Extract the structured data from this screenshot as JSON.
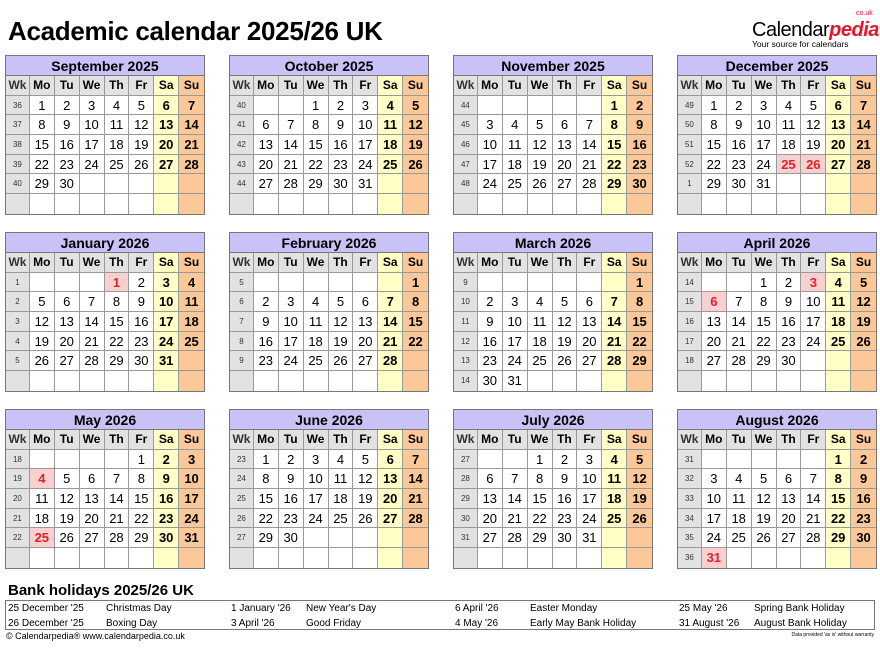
{
  "title": "Academic calendar 2025/26 UK",
  "logo": {
    "brand_a": "Calendar",
    "brand_b": "pedia",
    "couk": "co.uk",
    "tagline": "Your source for calendars"
  },
  "weekday_headers": [
    "Wk",
    "Mo",
    "Tu",
    "We",
    "Th",
    "Fr",
    "Sa",
    "Su"
  ],
  "colors": {
    "month_header": "#c8c2f7",
    "saturday": "#ffffc6",
    "sunday": "#fdc898",
    "holiday_bg": "#f8d0d0",
    "holiday_text": "#e0202a",
    "week_col": "#e2e2e2"
  },
  "months": [
    {
      "name": "September 2025",
      "holidays": [],
      "weeks": [
        [
          "36",
          "1",
          "2",
          "3",
          "4",
          "5",
          "6",
          "7"
        ],
        [
          "37",
          "8",
          "9",
          "10",
          "11",
          "12",
          "13",
          "14"
        ],
        [
          "38",
          "15",
          "16",
          "17",
          "18",
          "19",
          "20",
          "21"
        ],
        [
          "39",
          "22",
          "23",
          "24",
          "25",
          "26",
          "27",
          "28"
        ],
        [
          "40",
          "29",
          "30",
          "",
          "",
          "",
          "",
          ""
        ],
        [
          "",
          "",
          "",
          "",
          "",
          "",
          "",
          ""
        ]
      ]
    },
    {
      "name": "October 2025",
      "holidays": [],
      "weeks": [
        [
          "40",
          "",
          "",
          "1",
          "2",
          "3",
          "4",
          "5"
        ],
        [
          "41",
          "6",
          "7",
          "8",
          "9",
          "10",
          "11",
          "12"
        ],
        [
          "42",
          "13",
          "14",
          "15",
          "16",
          "17",
          "18",
          "19"
        ],
        [
          "43",
          "20",
          "21",
          "22",
          "23",
          "24",
          "25",
          "26"
        ],
        [
          "44",
          "27",
          "28",
          "29",
          "30",
          "31",
          "",
          ""
        ],
        [
          "",
          "",
          "",
          "",
          "",
          "",
          "",
          ""
        ]
      ]
    },
    {
      "name": "November 2025",
      "holidays": [],
      "weeks": [
        [
          "44",
          "",
          "",
          "",
          "",
          "",
          "1",
          "2"
        ],
        [
          "45",
          "3",
          "4",
          "5",
          "6",
          "7",
          "8",
          "9"
        ],
        [
          "46",
          "10",
          "11",
          "12",
          "13",
          "14",
          "15",
          "16"
        ],
        [
          "47",
          "17",
          "18",
          "19",
          "20",
          "21",
          "22",
          "23"
        ],
        [
          "48",
          "24",
          "25",
          "26",
          "27",
          "28",
          "29",
          "30"
        ],
        [
          "",
          "",
          "",
          "",
          "",
          "",
          "",
          ""
        ]
      ]
    },
    {
      "name": "December 2025",
      "holidays": [
        "25",
        "26"
      ],
      "weeks": [
        [
          "49",
          "1",
          "2",
          "3",
          "4",
          "5",
          "6",
          "7"
        ],
        [
          "50",
          "8",
          "9",
          "10",
          "11",
          "12",
          "13",
          "14"
        ],
        [
          "51",
          "15",
          "16",
          "17",
          "18",
          "19",
          "20",
          "21"
        ],
        [
          "52",
          "22",
          "23",
          "24",
          "25",
          "26",
          "27",
          "28"
        ],
        [
          "1",
          "29",
          "30",
          "31",
          "",
          "",
          "",
          ""
        ],
        [
          "",
          "",
          "",
          "",
          "",
          "",
          "",
          ""
        ]
      ]
    },
    {
      "name": "January 2026",
      "holidays": [
        "1"
      ],
      "weeks": [
        [
          "1",
          "",
          "",
          "",
          "1",
          "2",
          "3",
          "4"
        ],
        [
          "2",
          "5",
          "6",
          "7",
          "8",
          "9",
          "10",
          "11"
        ],
        [
          "3",
          "12",
          "13",
          "14",
          "15",
          "16",
          "17",
          "18"
        ],
        [
          "4",
          "19",
          "20",
          "21",
          "22",
          "23",
          "24",
          "25"
        ],
        [
          "5",
          "26",
          "27",
          "28",
          "29",
          "30",
          "31",
          ""
        ],
        [
          "",
          "",
          "",
          "",
          "",
          "",
          "",
          ""
        ]
      ]
    },
    {
      "name": "February 2026",
      "holidays": [],
      "weeks": [
        [
          "5",
          "",
          "",
          "",
          "",
          "",
          "",
          "1"
        ],
        [
          "6",
          "2",
          "3",
          "4",
          "5",
          "6",
          "7",
          "8"
        ],
        [
          "7",
          "9",
          "10",
          "11",
          "12",
          "13",
          "14",
          "15"
        ],
        [
          "8",
          "16",
          "17",
          "18",
          "19",
          "20",
          "21",
          "22"
        ],
        [
          "9",
          "23",
          "24",
          "25",
          "26",
          "27",
          "28",
          ""
        ],
        [
          "",
          "",
          "",
          "",
          "",
          "",
          "",
          ""
        ]
      ]
    },
    {
      "name": "March 2026",
      "holidays": [],
      "weeks": [
        [
          "9",
          "",
          "",
          "",
          "",
          "",
          "",
          "1"
        ],
        [
          "10",
          "2",
          "3",
          "4",
          "5",
          "6",
          "7",
          "8"
        ],
        [
          "11",
          "9",
          "10",
          "11",
          "12",
          "13",
          "14",
          "15"
        ],
        [
          "12",
          "16",
          "17",
          "18",
          "19",
          "20",
          "21",
          "22"
        ],
        [
          "13",
          "23",
          "24",
          "25",
          "26",
          "27",
          "28",
          "29"
        ],
        [
          "14",
          "30",
          "31",
          "",
          "",
          "",
          "",
          ""
        ]
      ]
    },
    {
      "name": "April 2026",
      "holidays": [
        "3",
        "6"
      ],
      "weeks": [
        [
          "14",
          "",
          "",
          "1",
          "2",
          "3",
          "4",
          "5"
        ],
        [
          "15",
          "6",
          "7",
          "8",
          "9",
          "10",
          "11",
          "12"
        ],
        [
          "16",
          "13",
          "14",
          "15",
          "16",
          "17",
          "18",
          "19"
        ],
        [
          "17",
          "20",
          "21",
          "22",
          "23",
          "24",
          "25",
          "26"
        ],
        [
          "18",
          "27",
          "28",
          "29",
          "30",
          "",
          "",
          ""
        ],
        [
          "",
          "",
          "",
          "",
          "",
          "",
          "",
          ""
        ]
      ]
    },
    {
      "name": "May 2026",
      "holidays": [
        "4",
        "25"
      ],
      "weeks": [
        [
          "18",
          "",
          "",
          "",
          "",
          "1",
          "2",
          "3"
        ],
        [
          "19",
          "4",
          "5",
          "6",
          "7",
          "8",
          "9",
          "10"
        ],
        [
          "20",
          "11",
          "12",
          "13",
          "14",
          "15",
          "16",
          "17"
        ],
        [
          "21",
          "18",
          "19",
          "20",
          "21",
          "22",
          "23",
          "24"
        ],
        [
          "22",
          "25",
          "26",
          "27",
          "28",
          "29",
          "30",
          "31"
        ],
        [
          "",
          "",
          "",
          "",
          "",
          "",
          "",
          ""
        ]
      ]
    },
    {
      "name": "June 2026",
      "holidays": [],
      "weeks": [
        [
          "23",
          "1",
          "2",
          "3",
          "4",
          "5",
          "6",
          "7"
        ],
        [
          "24",
          "8",
          "9",
          "10",
          "11",
          "12",
          "13",
          "14"
        ],
        [
          "25",
          "15",
          "16",
          "17",
          "18",
          "19",
          "20",
          "21"
        ],
        [
          "26",
          "22",
          "23",
          "24",
          "25",
          "26",
          "27",
          "28"
        ],
        [
          "27",
          "29",
          "30",
          "",
          "",
          "",
          "",
          ""
        ],
        [
          "",
          "",
          "",
          "",
          "",
          "",
          "",
          ""
        ]
      ]
    },
    {
      "name": "July 2026",
      "holidays": [],
      "weeks": [
        [
          "27",
          "",
          "",
          "1",
          "2",
          "3",
          "4",
          "5"
        ],
        [
          "28",
          "6",
          "7",
          "8",
          "9",
          "10",
          "11",
          "12"
        ],
        [
          "29",
          "13",
          "14",
          "15",
          "16",
          "17",
          "18",
          "19"
        ],
        [
          "30",
          "20",
          "21",
          "22",
          "23",
          "24",
          "25",
          "26"
        ],
        [
          "31",
          "27",
          "28",
          "29",
          "30",
          "31",
          "",
          ""
        ],
        [
          "",
          "",
          "",
          "",
          "",
          "",
          "",
          ""
        ]
      ]
    },
    {
      "name": "August 2026",
      "holidays": [
        "31"
      ],
      "weeks": [
        [
          "31",
          "",
          "",
          "",
          "",
          "",
          "1",
          "2"
        ],
        [
          "32",
          "3",
          "4",
          "5",
          "6",
          "7",
          "8",
          "9"
        ],
        [
          "33",
          "10",
          "11",
          "12",
          "13",
          "14",
          "15",
          "16"
        ],
        [
          "34",
          "17",
          "18",
          "19",
          "20",
          "21",
          "22",
          "23"
        ],
        [
          "35",
          "24",
          "25",
          "26",
          "27",
          "28",
          "29",
          "30"
        ],
        [
          "36",
          "31",
          "",
          "",
          "",
          "",
          "",
          ""
        ]
      ]
    }
  ],
  "bank_holidays": {
    "title": "Bank holidays 2025/26 UK",
    "items": [
      {
        "date": "25 December '25",
        "name": "Christmas Day"
      },
      {
        "date": "26 December '25",
        "name": "Boxing Day"
      },
      {
        "date": "1 January '26",
        "name": "New Year's Day"
      },
      {
        "date": "3 April '26",
        "name": "Good Friday"
      },
      {
        "date": "6 April '26",
        "name": "Easter Monday"
      },
      {
        "date": "4 May '26",
        "name": "Early May Bank Holiday"
      },
      {
        "date": "25 May '26",
        "name": "Spring Bank Holiday"
      },
      {
        "date": "31 August '26",
        "name": "August Bank Holiday"
      }
    ]
  },
  "footer": {
    "copyright": "© Calendarpedia®   www.calendarpedia.co.uk",
    "disclaimer": "Data provided 'as is' without warranty"
  }
}
